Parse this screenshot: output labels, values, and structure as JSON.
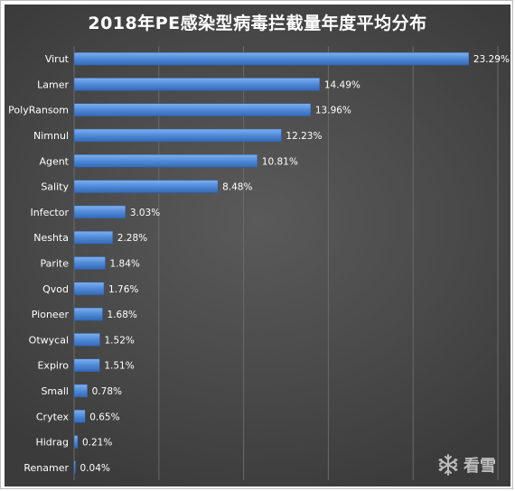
{
  "chart_data": {
    "type": "bar",
    "orientation": "horizontal",
    "title": "2018年PE感染型病毒拦截量年度平均分布",
    "categories": [
      "Virut",
      "Lamer",
      "PolyRansom",
      "Nimnul",
      "Agent",
      "Sality",
      "Infector",
      "Neshta",
      "Parite",
      "Qvod",
      "Pioneer",
      "Otwycal",
      "Expiro",
      "Small",
      "Crytex",
      "Hidrag",
      "Renamer"
    ],
    "values": [
      23.29,
      14.49,
      13.96,
      12.23,
      10.81,
      8.48,
      3.03,
      2.28,
      1.84,
      1.76,
      1.68,
      1.52,
      1.51,
      0.78,
      0.65,
      0.21,
      0.04
    ],
    "data_labels": [
      "23.29%",
      "14.49%",
      "13.96%",
      "12.23%",
      "10.81%",
      "8.48%",
      "3.03%",
      "2.28%",
      "1.84%",
      "1.76%",
      "1.68%",
      "1.52%",
      "1.51%",
      "0.78%",
      "0.65%",
      "0.21%",
      "0.04%"
    ],
    "xlim": [
      0,
      25
    ],
    "grid": true,
    "colors": {
      "bar": "#4f8ad8",
      "bar_top": "#7fb0ee",
      "bar_bottom": "#3569b5",
      "grid": "#6a6a6a",
      "text": "#ffffff"
    }
  },
  "watermark": {
    "icon": "snowflake-icon",
    "text": "看雪"
  }
}
